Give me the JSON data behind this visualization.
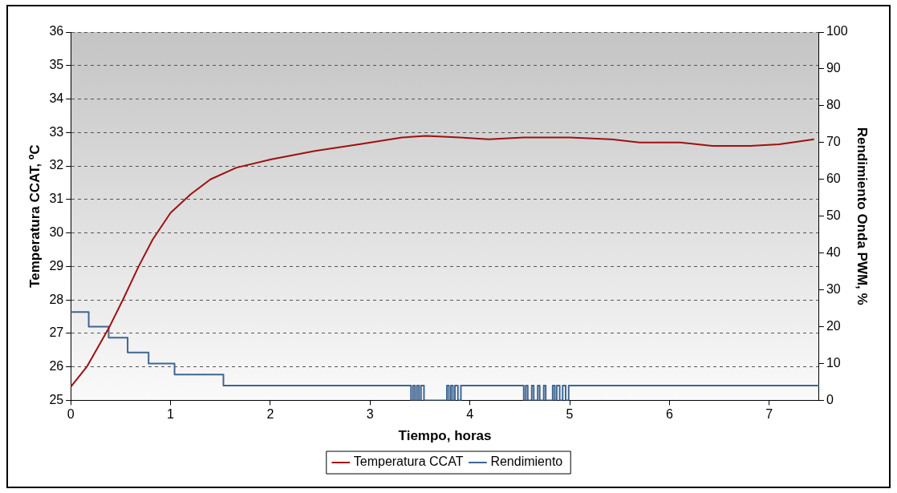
{
  "chart_data": {
    "type": "line",
    "xlabel": "Tiempo, horas",
    "ylabel": "Temperatura CCAT, ºC",
    "y2label": "Rendimiento Onda PWM, %",
    "xlim": [
      0,
      7.5
    ],
    "xticks": [
      0,
      1,
      2,
      3,
      4,
      5,
      6,
      7
    ],
    "ylim": [
      25,
      36
    ],
    "yticks": [
      25,
      26,
      27,
      28,
      29,
      30,
      31,
      32,
      33,
      34,
      35,
      36
    ],
    "y2lim": [
      0,
      100
    ],
    "y2ticks": [
      0,
      10,
      20,
      30,
      40,
      50,
      60,
      70,
      80,
      90,
      100
    ],
    "grid": "y",
    "legend": "bottom",
    "marker": "none",
    "series": [
      {
        "name": "Temperatura CCAT",
        "color": "#a01010",
        "x": [
          0,
          0.16,
          0.38,
          0.53,
          0.68,
          0.82,
          1.0,
          1.2,
          1.4,
          1.66,
          2.01,
          2.45,
          2.89,
          3.32,
          3.56,
          3.9,
          4.19,
          4.54,
          5.0,
          5.41,
          5.7,
          6.11,
          6.43,
          6.81,
          7.1,
          7.45
        ],
        "values": [
          25.4,
          26.0,
          27.15,
          28.05,
          29.0,
          29.8,
          30.6,
          31.15,
          31.6,
          31.95,
          32.2,
          32.45,
          32.65,
          32.85,
          32.9,
          32.85,
          32.8,
          32.85,
          32.85,
          32.8,
          32.7,
          32.7,
          32.6,
          32.6,
          32.65,
          32.8
        ]
      },
      {
        "name": "Rendimiento",
        "color": "#3f6690",
        "type": "step",
        "axis": "y2",
        "x": [
          0,
          0.18,
          0.38,
          0.57,
          0.78,
          1.04,
          1.53,
          3.41,
          3.43,
          3.45,
          3.47,
          3.49,
          3.51,
          3.54,
          3.77,
          3.79,
          3.81,
          3.83,
          3.85,
          3.88,
          3.91,
          4.54,
          4.56,
          4.58,
          4.62,
          4.64,
          4.68,
          4.7,
          4.74,
          4.76,
          4.83,
          4.85,
          4.87,
          4.9,
          4.93,
          4.96,
          4.99,
          5.02,
          7.5
        ],
        "values": [
          24,
          20,
          17,
          13,
          10,
          7,
          4,
          0,
          4,
          0,
          4,
          0,
          4,
          0,
          4,
          0,
          4,
          0,
          4,
          0,
          4,
          0,
          4,
          0,
          4,
          0,
          4,
          0,
          4,
          0,
          4,
          0,
          4,
          0,
          4,
          0,
          4,
          4,
          4
        ]
      }
    ]
  }
}
